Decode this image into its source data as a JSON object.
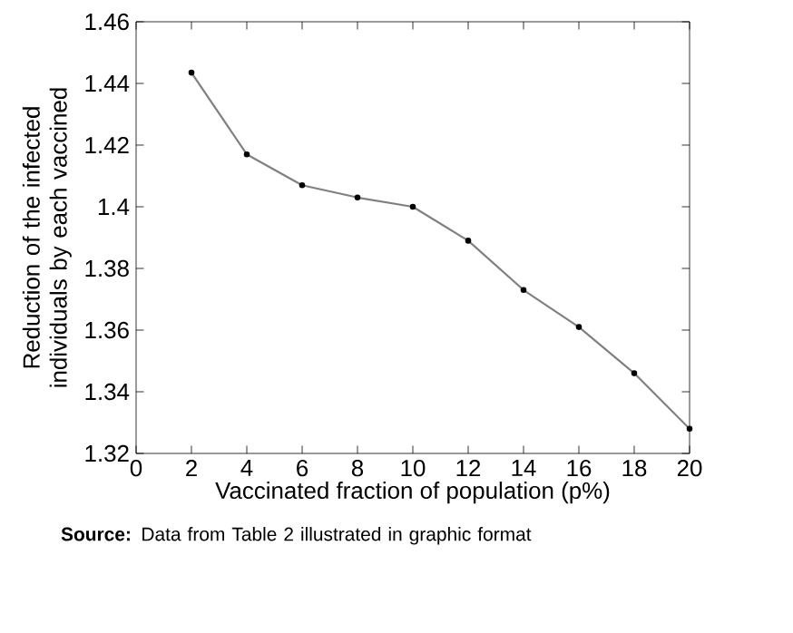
{
  "chart_data": {
    "type": "line",
    "xlabel": "Vaccinated fraction of population (p%)",
    "ylabel": "Reduction of the infected individuals by each vaccined",
    "x": [
      2,
      4,
      6,
      8,
      10,
      12,
      14,
      16,
      18,
      20
    ],
    "series": [
      {
        "color": "#808080",
        "values": [
          1.4435,
          1.417,
          1.407,
          1.403,
          1.4,
          1.389,
          1.373,
          1.361,
          1.346,
          1.328
        ]
      }
    ],
    "xlim": [
      0,
      20
    ],
    "ylim": [
      1.32,
      1.46
    ],
    "xticks": [
      0,
      2,
      4,
      6,
      8,
      10,
      12,
      14,
      16,
      18,
      20
    ],
    "yticks": [
      1.32,
      1.34,
      1.36,
      1.38,
      1.4,
      1.42,
      1.44,
      1.46
    ],
    "marker": "circle",
    "line_style": "solid",
    "grid": false,
    "annotations": [
      "**Source:** Data from Table 2 illustrated in graphic format"
    ]
  }
}
